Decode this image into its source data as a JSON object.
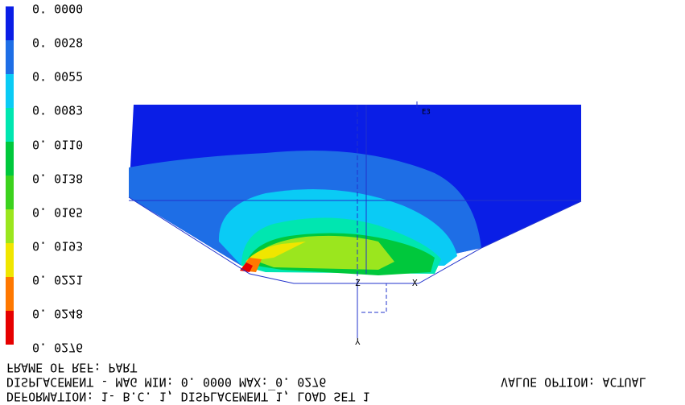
{
  "legend": {
    "labels": [
      "0. 0000",
      "0. 0028",
      "0. 0055",
      "0. 0083",
      "0. 0110",
      "0. 0138",
      "0. 0165",
      "0. 0193",
      "0. 0221",
      "0. 0248",
      "0. 0276"
    ],
    "colors": [
      "#0a1ee6",
      "#1e6ee6",
      "#0acbf5",
      "#00e6b0",
      "#00c83c",
      "#3cd21e",
      "#9be61e",
      "#f0e600",
      "#ff7800",
      "#e60000"
    ]
  },
  "view": {
    "node_label": "E3",
    "axis_y": "Y",
    "axis_x": "X",
    "axis_z": "Z"
  },
  "footer": {
    "line1": "FRAME OF REF: PART",
    "line2": "DISPLACEMENT - MAG MIN: 0. 0000 MAX: 0. 0276",
    "value_option": "VALUE OPTION: ACTUAL",
    "line3": "DEFORMATION: 1- B.C. 1, DISPLACEMENT_1, LOAD SET 1"
  }
}
